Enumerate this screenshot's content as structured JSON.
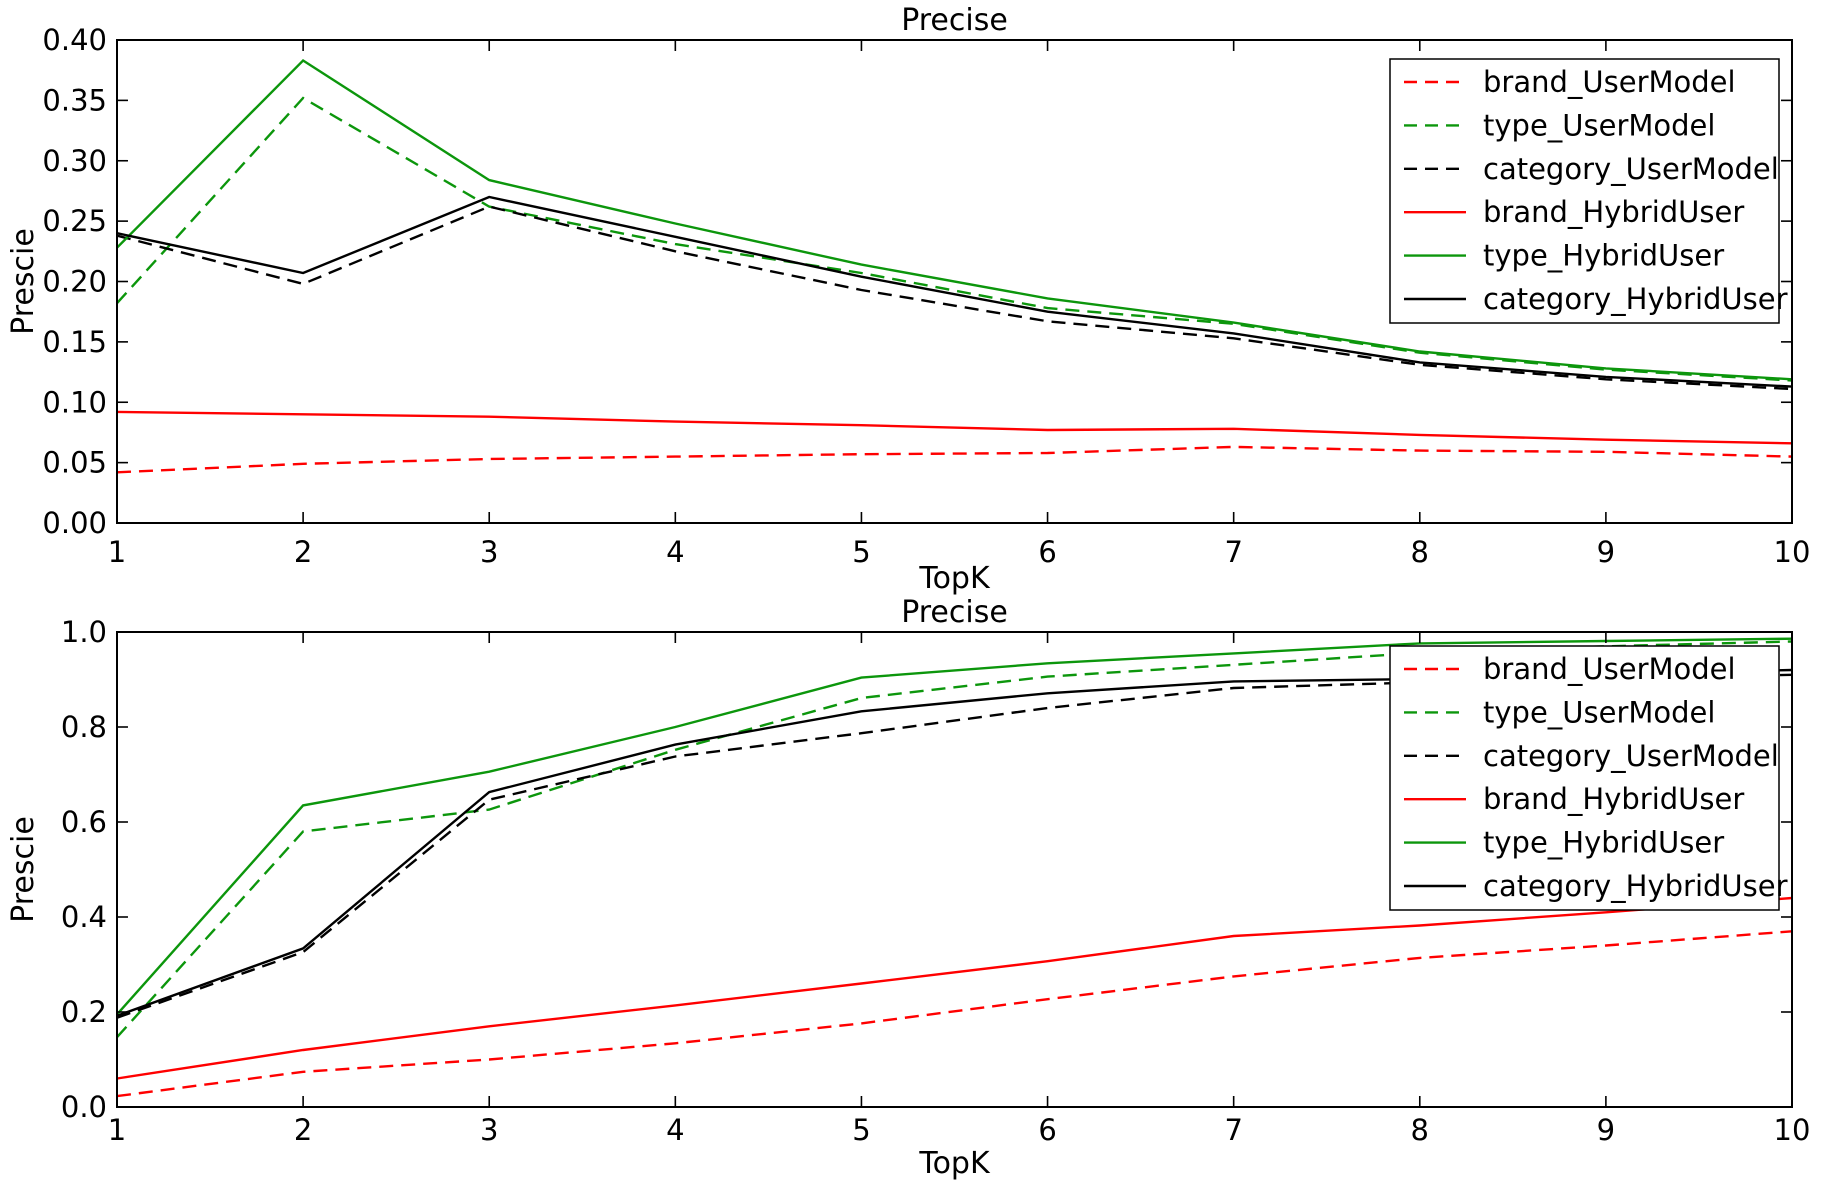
{
  "figure": {
    "background": "#ffffff",
    "colors": {
      "red": "#ff0000",
      "green": "#0c960c",
      "black": "#000000"
    }
  },
  "chart_data": [
    {
      "type": "line",
      "title": "Precise",
      "xlabel": "TopK",
      "ylabel": "Prescie",
      "xlim": [
        1,
        10
      ],
      "ylim": [
        0,
        0.4
      ],
      "grid": false,
      "legend_position": "upper right",
      "x": [
        1,
        2,
        3,
        4,
        5,
        6,
        7,
        8,
        9,
        10
      ],
      "xtick_labels": [
        "1",
        "2",
        "3",
        "4",
        "5",
        "6",
        "7",
        "8",
        "9",
        "10"
      ],
      "ytick_values": [
        0,
        0.05,
        0.1,
        0.15,
        0.2,
        0.25,
        0.3,
        0.35,
        0.4
      ],
      "ytick_labels": [
        "0.00",
        "0.05",
        "0.10",
        "0.15",
        "0.20",
        "0.25",
        "0.30",
        "0.35",
        "0.40"
      ],
      "series": [
        {
          "name": "brand_UserModel",
          "color": "#ff0000",
          "linestyle": "dashed",
          "values": [
            0.042,
            0.049,
            0.053,
            0.055,
            0.057,
            0.058,
            0.063,
            0.06,
            0.059,
            0.055
          ]
        },
        {
          "name": "type_UserModel",
          "color": "#0c960c",
          "linestyle": "dashed",
          "values": [
            0.182,
            0.352,
            0.262,
            0.231,
            0.207,
            0.178,
            0.165,
            0.141,
            0.127,
            0.118
          ]
        },
        {
          "name": "category_UserModel",
          "color": "#000000",
          "linestyle": "dashed",
          "values": [
            0.238,
            0.198,
            0.262,
            0.225,
            0.193,
            0.167,
            0.153,
            0.131,
            0.119,
            0.111
          ]
        },
        {
          "name": "brand_HybridUser",
          "color": "#ff0000",
          "linestyle": "solid",
          "values": [
            0.092,
            0.09,
            0.088,
            0.084,
            0.081,
            0.077,
            0.078,
            0.073,
            0.069,
            0.066
          ]
        },
        {
          "name": "type_HybridUser",
          "color": "#0c960c",
          "linestyle": "solid",
          "values": [
            0.228,
            0.383,
            0.284,
            0.248,
            0.214,
            0.186,
            0.166,
            0.142,
            0.128,
            0.119
          ]
        },
        {
          "name": "category_HybridUser",
          "color": "#000000",
          "linestyle": "solid",
          "values": [
            0.24,
            0.207,
            0.27,
            0.237,
            0.204,
            0.175,
            0.157,
            0.133,
            0.121,
            0.113
          ]
        }
      ]
    },
    {
      "type": "line",
      "title": "Precise",
      "xlabel": "TopK",
      "ylabel": "Prescie",
      "xlim": [
        1,
        10
      ],
      "ylim": [
        0,
        1.0
      ],
      "grid": false,
      "legend_position": "upper right",
      "x": [
        1,
        2,
        3,
        4,
        5,
        6,
        7,
        8,
        9,
        10
      ],
      "xtick_labels": [
        "1",
        "2",
        "3",
        "4",
        "5",
        "6",
        "7",
        "8",
        "9",
        "10"
      ],
      "ytick_values": [
        0,
        0.2,
        0.4,
        0.6,
        0.8,
        1.0
      ],
      "ytick_labels": [
        "0.0",
        "0.2",
        "0.4",
        "0.6",
        "0.8",
        "1.0"
      ],
      "series": [
        {
          "name": "brand_UserModel",
          "color": "#ff0000",
          "linestyle": "dashed",
          "values": [
            0.023,
            0.074,
            0.1,
            0.134,
            0.176,
            0.227,
            0.275,
            0.314,
            0.34,
            0.37
          ]
        },
        {
          "name": "type_UserModel",
          "color": "#0c960c",
          "linestyle": "dashed",
          "values": [
            0.147,
            0.58,
            0.626,
            0.752,
            0.861,
            0.906,
            0.931,
            0.956,
            0.97,
            0.98
          ]
        },
        {
          "name": "category_UserModel",
          "color": "#000000",
          "linestyle": "dashed",
          "values": [
            0.188,
            0.326,
            0.647,
            0.738,
            0.787,
            0.84,
            0.882,
            0.894,
            0.902,
            0.91
          ]
        },
        {
          "name": "brand_HybridUser",
          "color": "#ff0000",
          "linestyle": "solid",
          "values": [
            0.06,
            0.12,
            0.17,
            0.214,
            0.26,
            0.307,
            0.36,
            0.382,
            0.41,
            0.44
          ]
        },
        {
          "name": "type_HybridUser",
          "color": "#0c960c",
          "linestyle": "solid",
          "values": [
            0.195,
            0.635,
            0.706,
            0.8,
            0.904,
            0.934,
            0.955,
            0.976,
            0.981,
            0.986
          ]
        },
        {
          "name": "category_HybridUser",
          "color": "#000000",
          "linestyle": "solid",
          "values": [
            0.192,
            0.334,
            0.663,
            0.763,
            0.833,
            0.871,
            0.896,
            0.901,
            0.912,
            0.92
          ]
        }
      ]
    }
  ]
}
